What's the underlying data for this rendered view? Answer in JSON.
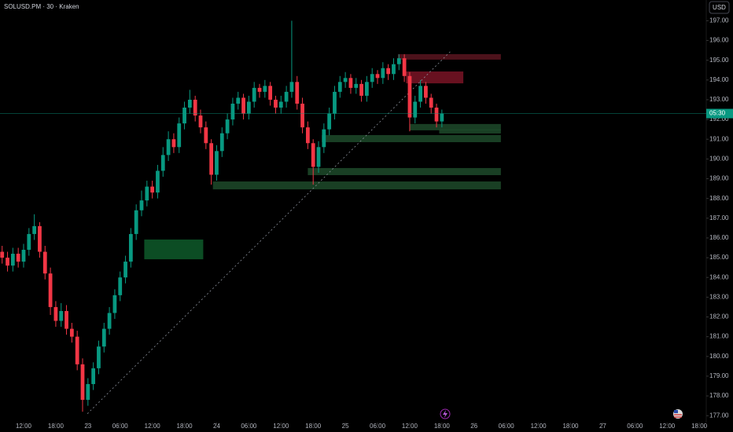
{
  "chart_data": {
    "type": "candlestick",
    "title": "SOLUSD.PM · 30 · Kraken",
    "currency": "USD",
    "countdown": "05:30",
    "up_color": "#089981",
    "down_color": "#f23645",
    "xlim": [
      7.6,
      139.3
    ],
    "ylim": [
      176.65,
      198.05
    ],
    "xticks": [
      {
        "value": 12,
        "label": "12:00"
      },
      {
        "value": 18,
        "label": "18:00"
      },
      {
        "value": 24,
        "label": "23"
      },
      {
        "value": 30,
        "label": "06:00"
      },
      {
        "value": 36,
        "label": "12:00"
      },
      {
        "value": 42,
        "label": "18:00"
      },
      {
        "value": 48,
        "label": "24"
      },
      {
        "value": 54,
        "label": "06:00"
      },
      {
        "value": 60,
        "label": "12:00"
      },
      {
        "value": 66,
        "label": "18:00"
      },
      {
        "value": 72,
        "label": "25"
      },
      {
        "value": 78,
        "label": "06:00"
      },
      {
        "value": 84,
        "label": "12:00"
      },
      {
        "value": 90,
        "label": "18:00"
      },
      {
        "value": 96,
        "label": "26"
      },
      {
        "value": 102,
        "label": "06:00"
      },
      {
        "value": 108,
        "label": "12:00"
      },
      {
        "value": 114,
        "label": "18:00"
      },
      {
        "value": 120,
        "label": "27"
      },
      {
        "value": 126,
        "label": "06:00"
      },
      {
        "value": 132,
        "label": "12:00"
      },
      {
        "value": 138,
        "label": "18:00"
      }
    ],
    "yticks": [
      {
        "value": 177,
        "label": "177.00"
      },
      {
        "value": 178,
        "label": "178.00"
      },
      {
        "value": 179,
        "label": "179.00"
      },
      {
        "value": 180,
        "label": "180.00"
      },
      {
        "value": 181,
        "label": "181.00"
      },
      {
        "value": 182,
        "label": "182.00"
      },
      {
        "value": 183,
        "label": "183.00"
      },
      {
        "value": 184,
        "label": "184.00"
      },
      {
        "value": 185,
        "label": "185.00"
      },
      {
        "value": 186,
        "label": "186.00"
      },
      {
        "value": 187,
        "label": "187.00"
      },
      {
        "value": 188,
        "label": "188.00"
      },
      {
        "value": 189,
        "label": "189.00"
      },
      {
        "value": 190,
        "label": "190.00"
      },
      {
        "value": 191,
        "label": "191.00"
      },
      {
        "value": 192,
        "label": "192.00"
      },
      {
        "value": 193,
        "label": "193.00"
      },
      {
        "value": 194,
        "label": "194.00"
      },
      {
        "value": 195,
        "label": "195.00"
      },
      {
        "value": 196,
        "label": "196.00"
      },
      {
        "value": 197,
        "label": "197.00"
      }
    ],
    "x": [
      8,
      9,
      10,
      11,
      12,
      13,
      14,
      15,
      16,
      17,
      18,
      19,
      20,
      21,
      22,
      23,
      24,
      25,
      26,
      27,
      28,
      29,
      30,
      31,
      32,
      33,
      34,
      35,
      36,
      37,
      38,
      39,
      40,
      41,
      42,
      43,
      44,
      45,
      46,
      47,
      48,
      49,
      50,
      51,
      52,
      53,
      54,
      55,
      56,
      57,
      58,
      59,
      60,
      61,
      62,
      63,
      64,
      65,
      66,
      67,
      68,
      69,
      70,
      71,
      72,
      73,
      74,
      75,
      76,
      77,
      78,
      79,
      80,
      81,
      82,
      83,
      84,
      85,
      86,
      87,
      88,
      89,
      90
    ],
    "open": [
      185.3,
      185.0,
      184.6,
      185.2,
      184.8,
      185.4,
      186.2,
      186.6,
      185.3,
      184.2,
      182.5,
      181.8,
      182.3,
      181.4,
      181.0,
      179.6,
      177.8,
      178.6,
      179.4,
      180.5,
      181.4,
      182.2,
      183.1,
      184.0,
      184.8,
      186.2,
      187.4,
      187.9,
      188.6,
      188.3,
      189.4,
      190.2,
      191.0,
      190.6,
      191.8,
      192.6,
      193.0,
      192.2,
      191.6,
      190.8,
      189.2,
      190.4,
      191.3,
      192.0,
      192.8,
      193.1,
      192.3,
      192.9,
      193.6,
      193.4,
      193.7,
      193.0,
      192.6,
      192.9,
      193.4,
      193.9,
      192.8,
      191.6,
      190.8,
      189.6,
      190.6,
      191.5,
      192.3,
      193.4,
      193.9,
      194.1,
      193.6,
      193.8,
      193.2,
      193.9,
      194.3,
      194.1,
      194.6,
      194.3,
      194.8,
      195.1,
      194.2,
      192.1,
      192.9,
      193.7,
      193.1,
      192.6,
      191.9
    ],
    "high": [
      185.6,
      185.3,
      185.5,
      185.5,
      185.7,
      186.5,
      187.2,
      186.8,
      185.6,
      184.5,
      182.8,
      182.7,
      182.6,
      181.7,
      181.3,
      179.9,
      178.9,
      179.7,
      180.8,
      181.7,
      182.5,
      183.4,
      184.3,
      185.1,
      186.5,
      187.7,
      188.4,
      188.9,
      188.9,
      189.7,
      190.6,
      191.4,
      191.3,
      192.1,
      192.9,
      193.5,
      193.2,
      192.5,
      191.9,
      191.0,
      190.7,
      191.6,
      192.3,
      193.1,
      193.4,
      193.3,
      193.2,
      193.9,
      193.8,
      194.0,
      193.9,
      193.2,
      193.2,
      193.7,
      197.0,
      194.2,
      193.1,
      191.9,
      191.0,
      190.9,
      191.8,
      192.6,
      193.7,
      194.2,
      194.4,
      194.3,
      194.1,
      194.0,
      194.2,
      194.6,
      194.5,
      194.9,
      194.8,
      195.1,
      195.3,
      195.3,
      194.4,
      193.2,
      194.0,
      193.9,
      193.3,
      192.8,
      192.5
    ],
    "low": [
      184.7,
      184.3,
      184.3,
      184.5,
      184.5,
      185.1,
      185.9,
      185.0,
      183.9,
      182.1,
      181.5,
      181.5,
      181.1,
      180.7,
      179.3,
      177.2,
      177.5,
      178.3,
      179.1,
      180.2,
      181.1,
      181.9,
      182.8,
      183.7,
      184.5,
      185.9,
      187.1,
      187.6,
      188.0,
      188.0,
      189.1,
      189.9,
      190.3,
      190.3,
      191.5,
      192.3,
      191.9,
      191.3,
      190.5,
      188.7,
      188.9,
      190.1,
      191.0,
      191.7,
      192.5,
      192.0,
      192.0,
      192.6,
      193.1,
      193.1,
      192.7,
      192.3,
      192.3,
      192.6,
      193.1,
      192.5,
      191.3,
      190.5,
      188.7,
      189.3,
      190.3,
      191.2,
      192.0,
      193.1,
      193.6,
      193.3,
      193.3,
      192.9,
      192.9,
      193.6,
      193.8,
      193.8,
      194.0,
      194.0,
      194.5,
      193.9,
      191.4,
      191.8,
      192.6,
      192.8,
      192.3,
      191.6,
      191.6
    ],
    "close": [
      185.0,
      184.6,
      185.2,
      184.8,
      185.4,
      186.2,
      186.6,
      185.3,
      184.2,
      182.5,
      181.8,
      182.3,
      181.4,
      181.0,
      179.6,
      177.8,
      178.6,
      179.4,
      180.5,
      181.4,
      182.2,
      183.1,
      184.0,
      184.8,
      186.2,
      187.4,
      187.9,
      188.6,
      188.3,
      189.4,
      190.2,
      191.0,
      190.6,
      191.8,
      192.6,
      193.0,
      192.2,
      191.6,
      190.8,
      189.2,
      190.4,
      191.3,
      192.0,
      192.8,
      193.1,
      192.3,
      192.9,
      193.6,
      193.4,
      193.7,
      193.0,
      192.6,
      192.9,
      193.4,
      193.9,
      192.8,
      191.6,
      190.8,
      189.6,
      190.6,
      191.5,
      192.3,
      193.4,
      193.9,
      194.1,
      193.6,
      193.8,
      193.2,
      193.9,
      194.3,
      194.1,
      194.6,
      194.3,
      194.8,
      195.1,
      194.2,
      192.1,
      192.9,
      193.7,
      193.1,
      192.6,
      191.9,
      192.3
    ],
    "zones": [
      {
        "x": [
          34.5,
          45.5
        ],
        "y": [
          184.92,
          185.92
        ],
        "color": "#0e5a2a"
      },
      {
        "x": [
          47.3,
          101
        ],
        "y": [
          188.46,
          188.86
        ],
        "color": "#1d4a2a"
      },
      {
        "x": [
          65,
          101
        ],
        "y": [
          189.18,
          189.54
        ],
        "color": "#1d4a2a"
      },
      {
        "x": [
          67.6,
          101
        ],
        "y": [
          190.85,
          191.21
        ],
        "color": "#1d4a2a"
      },
      {
        "x": [
          84,
          101
        ],
        "y": [
          191.45,
          191.77
        ],
        "color": "#1d4a2a"
      },
      {
        "x": [
          89.5,
          101
        ],
        "y": [
          191.29,
          191.5
        ],
        "color": "#1d4a2a"
      },
      {
        "x": [
          81.8,
          101
        ],
        "y": [
          195.03,
          195.31
        ],
        "color": "#5a1520"
      },
      {
        "x": [
          83.3,
          94
        ],
        "y": [
          193.83,
          194.43
        ],
        "color": "#7a1426"
      }
    ],
    "trendline": {
      "x": [
        23.9,
        91.8
      ],
      "y": [
        177.1,
        195.5
      ],
      "color": "#8a8f9a"
    }
  }
}
